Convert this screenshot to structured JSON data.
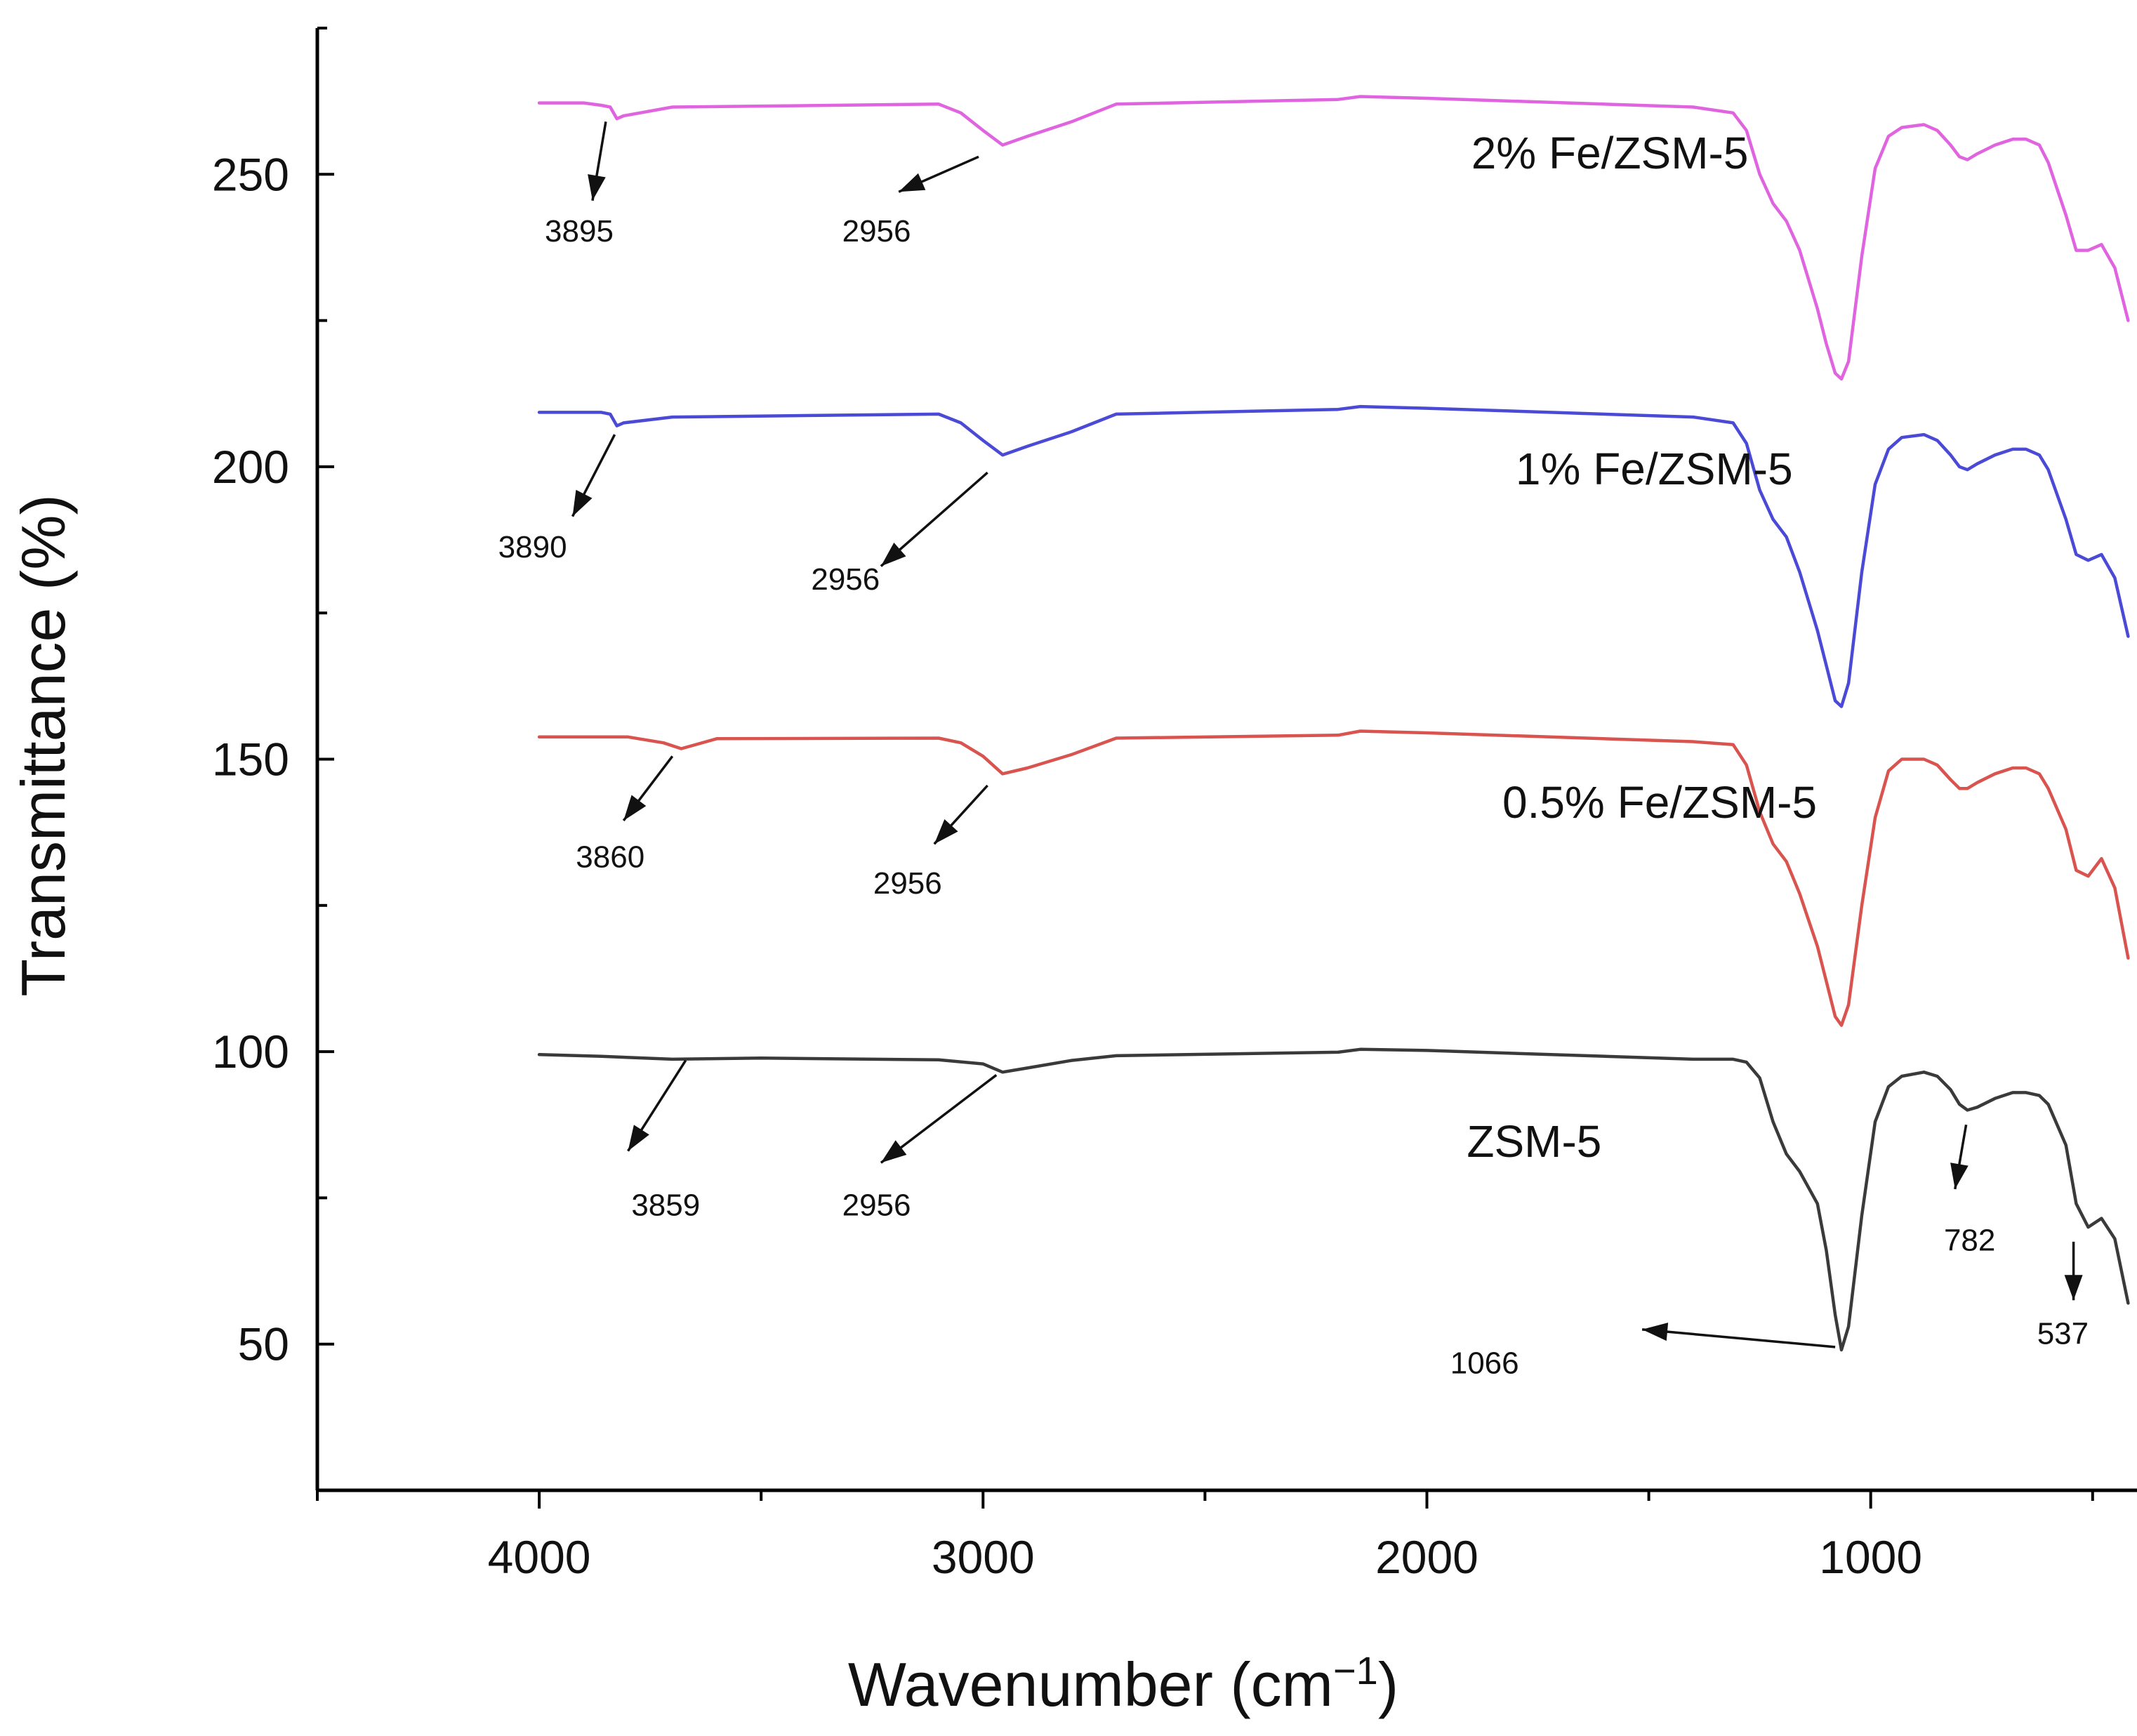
{
  "chart_data": {
    "type": "line",
    "title": "",
    "xlabel": "Wavenumber (cm",
    "xlabel_sup": "−1",
    "xlabel_close": ")",
    "ylabel": "Transmittance (%)",
    "xlim": [
      4500,
      400
    ],
    "ylim": [
      25,
      275
    ],
    "x_ticks": [
      4000,
      3000,
      2000,
      1000
    ],
    "x_tick_labels": [
      "4000",
      "3000",
      "2000",
      "1000"
    ],
    "y_ticks": [
      50,
      100,
      150,
      200,
      250
    ],
    "y_tick_labels": [
      "50",
      "100",
      "150",
      "200",
      "250"
    ],
    "grid": false,
    "series": [
      {
        "name": "ZSM-5",
        "color": "#3a3a3a",
        "x": [
          4000,
          3860,
          3700,
          3500,
          3100,
          3000,
          2956,
          2900,
          2800,
          2700,
          2200,
          2150,
          2000,
          1400,
          1310,
          1280,
          1250,
          1220,
          1190,
          1160,
          1120,
          1100,
          1080,
          1066,
          1050,
          1020,
          990,
          960,
          930,
          880,
          850,
          820,
          800,
          782,
          760,
          720,
          680,
          650,
          620,
          600,
          560,
          537,
          510,
          480,
          450,
          420
        ],
        "values": [
          99.5,
          99.2,
          98.7,
          98.9,
          98.6,
          97.9,
          96.5,
          97.2,
          98.5,
          99.3,
          99.9,
          100.4,
          100.2,
          98.7,
          98.7,
          98.2,
          95.5,
          88.0,
          82.5,
          79.5,
          74.0,
          66.0,
          55.0,
          49.0,
          53.0,
          72.0,
          88.0,
          94.0,
          95.8,
          96.5,
          95.8,
          93.5,
          91.0,
          90.0,
          90.5,
          92.0,
          93.0,
          93.0,
          92.5,
          91.0,
          84.0,
          74.0,
          70.0,
          71.5,
          68.0,
          57.0
        ],
        "label_pos": [
          1910,
          82
        ]
      },
      {
        "name": "0.5% Fe/ZSM-5",
        "color": "#d9534f",
        "x": [
          4000,
          3800,
          3720,
          3680,
          3600,
          3100,
          3050,
          3000,
          2956,
          2900,
          2800,
          2700,
          2200,
          2150,
          2000,
          1400,
          1310,
          1280,
          1250,
          1220,
          1190,
          1160,
          1120,
          1100,
          1080,
          1066,
          1050,
          1020,
          990,
          960,
          930,
          880,
          850,
          820,
          800,
          782,
          760,
          720,
          680,
          650,
          620,
          600,
          560,
          537,
          510,
          480,
          450,
          420
        ],
        "values": [
          153.8,
          153.8,
          152.8,
          151.8,
          153.5,
          153.6,
          152.8,
          150.5,
          147.5,
          148.5,
          150.8,
          153.6,
          154.1,
          154.8,
          154.5,
          153.0,
          152.5,
          149.0,
          141.0,
          135.5,
          132.5,
          127.0,
          118.0,
          112.0,
          106.0,
          104.5,
          108.0,
          125.0,
          140.0,
          148.0,
          150.0,
          150.0,
          149.0,
          146.5,
          145.0,
          145.0,
          146.0,
          147.5,
          148.5,
          148.5,
          147.5,
          145.0,
          138.0,
          131.0,
          130.0,
          133.0,
          128.0,
          116.0
        ],
        "label_pos": [
          1830,
          140
        ]
      },
      {
        "name": "1% Fe/ZSM-5",
        "color": "#4a4ad6",
        "x": [
          4000,
          3860,
          3840,
          3825,
          3810,
          3700,
          3100,
          3050,
          3000,
          2956,
          2900,
          2800,
          2700,
          2200,
          2150,
          2000,
          1400,
          1310,
          1280,
          1250,
          1220,
          1190,
          1160,
          1120,
          1100,
          1080,
          1066,
          1050,
          1020,
          990,
          960,
          930,
          880,
          850,
          820,
          800,
          782,
          760,
          720,
          680,
          650,
          620,
          600,
          560,
          537,
          510,
          480,
          450,
          420
        ],
        "values": [
          209.3,
          209.3,
          209.0,
          207.0,
          207.5,
          208.5,
          209.0,
          207.5,
          204.5,
          202.0,
          203.5,
          206.0,
          209.0,
          209.8,
          210.3,
          210.0,
          208.5,
          207.5,
          204.0,
          196.0,
          191.0,
          188.0,
          182.0,
          172.0,
          166.0,
          160.0,
          159.0,
          163.0,
          182.0,
          197.0,
          203.0,
          205.0,
          205.5,
          204.5,
          202.0,
          200.0,
          199.5,
          200.5,
          202.0,
          203.0,
          203.0,
          202.0,
          199.5,
          191.0,
          185.0,
          184.0,
          185.0,
          181.0,
          171.0
        ],
        "label_pos": [
          1800,
          197
        ]
      },
      {
        "name": "2% Fe/ZSM-5",
        "color": "#e063e0",
        "x": [
          4000,
          3900,
          3860,
          3840,
          3825,
          3810,
          3700,
          3100,
          3050,
          3000,
          2956,
          2900,
          2800,
          2700,
          2200,
          2150,
          2000,
          1400,
          1310,
          1280,
          1250,
          1220,
          1190,
          1160,
          1120,
          1100,
          1080,
          1066,
          1050,
          1020,
          990,
          960,
          930,
          880,
          850,
          820,
          800,
          782,
          760,
          720,
          680,
          650,
          620,
          600,
          560,
          537,
          510,
          480,
          450,
          420
        ],
        "values": [
          262.2,
          262.2,
          261.8,
          261.5,
          259.5,
          260.0,
          261.5,
          262.0,
          260.5,
          257.5,
          255.0,
          256.5,
          259.0,
          262.0,
          262.8,
          263.3,
          263.0,
          261.5,
          260.5,
          257.5,
          250.0,
          245.0,
          242.0,
          237.0,
          227.0,
          221.0,
          216.0,
          215.0,
          218.0,
          236.0,
          251.0,
          256.5,
          258.0,
          258.5,
          257.5,
          255.0,
          253.0,
          252.5,
          253.5,
          255.0,
          256.0,
          256.0,
          255.0,
          252.0,
          243.0,
          237.0,
          237.0,
          238.0,
          234.0,
          225.0
        ],
        "label_pos": [
          1900,
          251
        ]
      }
    ],
    "annotations": [
      {
        "text": "3859",
        "tail": [
          3670,
          98.5
        ],
        "head": [
          3800,
          83
        ],
        "label_at": [
          3715,
          72
        ]
      },
      {
        "text": "2956",
        "tail": [
          2970,
          96
        ],
        "head": [
          3230,
          81
        ],
        "label_at": [
          3240,
          72
        ]
      },
      {
        "text": "782",
        "tail": [
          785,
          87.5
        ],
        "head": [
          810,
          76.5
        ],
        "label_at": [
          777,
          66
        ]
      },
      {
        "text": "537",
        "tail": [
          543,
          67.5
        ],
        "head": [
          543,
          57.5
        ],
        "label_at": [
          567,
          50
        ]
      },
      {
        "text": "1066",
        "tail": [
          1080,
          49.5
        ],
        "head": [
          1515,
          52.5
        ],
        "label_at": [
          1870,
          45
        ]
      },
      {
        "text": "3860",
        "tail": [
          3700,
          150.5
        ],
        "head": [
          3810,
          139.5
        ],
        "label_at": [
          3840,
          131.5
        ]
      },
      {
        "text": "2956",
        "tail": [
          2990,
          145.5
        ],
        "head": [
          3110,
          135.5
        ],
        "label_at": [
          3170,
          127
        ]
      },
      {
        "text": "3890",
        "tail": [
          3830,
          205.5
        ],
        "head": [
          3925,
          191.5
        ],
        "label_at": [
          4015,
          184.5
        ]
      },
      {
        "text": "2956",
        "tail": [
          2990,
          199
        ],
        "head": [
          3230,
          183
        ],
        "label_at": [
          3310,
          179
        ]
      },
      {
        "text": "3895",
        "tail": [
          3850,
          259
        ],
        "head": [
          3880,
          245.5
        ],
        "label_at": [
          3910,
          238.5
        ]
      },
      {
        "text": "2956",
        "tail": [
          3010,
          253
        ],
        "head": [
          3190,
          247
        ],
        "label_at": [
          3240,
          238.5
        ]
      }
    ]
  }
}
